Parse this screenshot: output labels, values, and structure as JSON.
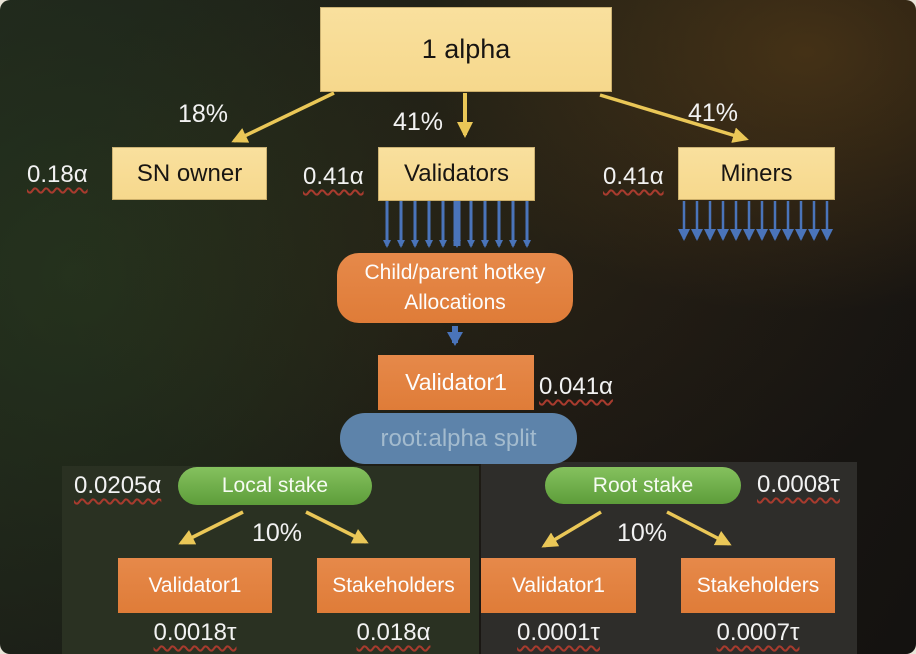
{
  "diagram": {
    "root_node": {
      "label": "1 alpha"
    },
    "branches": [
      {
        "percent": "18%",
        "amount": "0.18α",
        "label": "SN owner"
      },
      {
        "percent": "41%",
        "amount": "0.41α",
        "label": "Validators"
      },
      {
        "percent": "41%",
        "amount": "0.41α",
        "label": "Miners"
      }
    ],
    "allocations": {
      "line1": "Child/parent hotkey",
      "line2": "Allocations"
    },
    "validator1": {
      "label": "Validator1",
      "amount": "0.041α"
    },
    "split": {
      "label": "root:alpha split"
    },
    "panels": [
      {
        "stake_label": "Local stake",
        "stake_amount": "0.0205α",
        "percent": "10%",
        "children": [
          {
            "label": "Validator1",
            "amount": "0.0018τ"
          },
          {
            "label": "Stakeholders",
            "amount": "0.018α"
          }
        ]
      },
      {
        "stake_label": "Root stake",
        "stake_amount": "0.0008τ",
        "percent": "10%",
        "children": [
          {
            "label": "Validator1",
            "amount": "0.0001τ"
          },
          {
            "label": "Stakeholders",
            "amount": "0.0007τ"
          }
        ]
      }
    ],
    "colors": {
      "cream": "#f6d88c",
      "orange": "#df7c38",
      "green": "#6aa946",
      "blue_node": "#5d83aa",
      "arrow_yellow": "#eac757",
      "arrow_blue": "#4a74ba",
      "underline_red": "#a83b2e"
    }
  }
}
